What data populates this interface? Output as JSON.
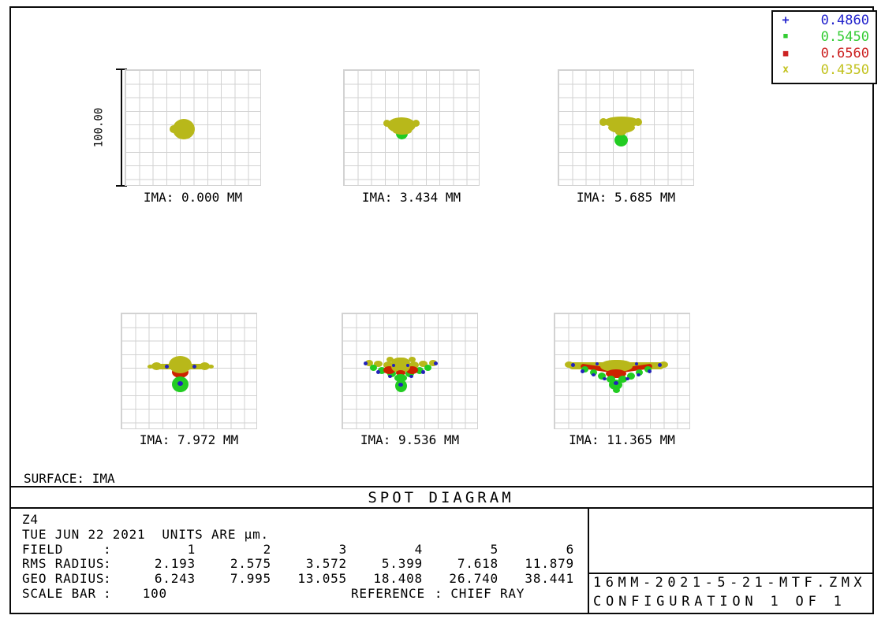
{
  "title": "SPOT DIAGRAM",
  "surface_label": "SURFACE: IMA",
  "colors": {
    "wl1": "#2222bb",
    "wl2": "#22cc22",
    "wl3": "#cc2200",
    "wl4": "#b8b81a"
  },
  "legend": {
    "entries": [
      {
        "marker": "+",
        "label": "0.4860",
        "color": "#2222cc"
      },
      {
        "marker": "■",
        "label": "0.5450",
        "color": "#33cc33"
      },
      {
        "marker": "■",
        "label": "0.6560",
        "color": "#cc2222"
      },
      {
        "marker": "x",
        "label": "0.4350",
        "color": "#c2c21e"
      }
    ]
  },
  "scale_bar": {
    "label": "100.00"
  },
  "plots": [
    {
      "ima_label": "IMA: 0.000 MM"
    },
    {
      "ima_label": "IMA: 3.434 MM"
    },
    {
      "ima_label": "IMA: 5.685 MM"
    },
    {
      "ima_label": "IMA: 7.972 MM"
    },
    {
      "ima_label": "IMA: 9.536 MM"
    },
    {
      "ima_label": "IMA: 11.365 MM"
    }
  ],
  "footer": {
    "lens_name": "Z4",
    "date_units": "TUE JUN 22 2021  UNITS ARE µm.",
    "rows": [
      {
        "label": "FIELD",
        "values": [
          "1",
          "2",
          "3",
          "4",
          "5",
          "6"
        ]
      },
      {
        "label": "RMS RADIUS",
        "values": [
          "2.193",
          "2.575",
          "3.572",
          "5.399",
          "7.618",
          "11.879"
        ]
      },
      {
        "label": "GEO RADIUS",
        "values": [
          "6.243",
          "7.995",
          "13.055",
          "18.408",
          "26.740",
          "38.441"
        ]
      }
    ],
    "scale_bar_label": "SCALE BAR",
    "scale_bar_value": "100",
    "reference_label": "REFERENCE",
    "reference_colon": ":",
    "reference_value": "CHIEF RAY",
    "filename": "16MM-2021-5-21-MTF.ZMX",
    "configuration": "CONFIGURATION 1 OF 1"
  },
  "chart_data": {
    "type": "scatter",
    "title": "SPOT DIAGRAM",
    "surface": "IMA",
    "units": "µm",
    "scale_bar_um": 100,
    "reference": "CHIEF RAY",
    "grid": true,
    "legend_position": "top-right",
    "wavelengths_um": [
      0.486,
      0.545,
      0.656,
      0.435
    ],
    "wavelength_colors": [
      "#2222bb",
      "#22cc22",
      "#cc2200",
      "#b8b81a"
    ],
    "fields": [
      {
        "field": 1,
        "ima_mm": 0.0,
        "rms_radius_um": 2.193,
        "geo_radius_um": 6.243
      },
      {
        "field": 2,
        "ima_mm": 3.434,
        "rms_radius_um": 2.575,
        "geo_radius_um": 7.995
      },
      {
        "field": 3,
        "ima_mm": 5.685,
        "rms_radius_um": 3.572,
        "geo_radius_um": 13.055
      },
      {
        "field": 4,
        "ima_mm": 7.972,
        "rms_radius_um": 5.399,
        "geo_radius_um": 18.408
      },
      {
        "field": 5,
        "ima_mm": 9.536,
        "rms_radius_um": 7.618,
        "geo_radius_um": 26.74
      },
      {
        "field": 6,
        "ima_mm": 11.365,
        "rms_radius_um": 11.879,
        "geo_radius_um": 38.441
      }
    ]
  }
}
